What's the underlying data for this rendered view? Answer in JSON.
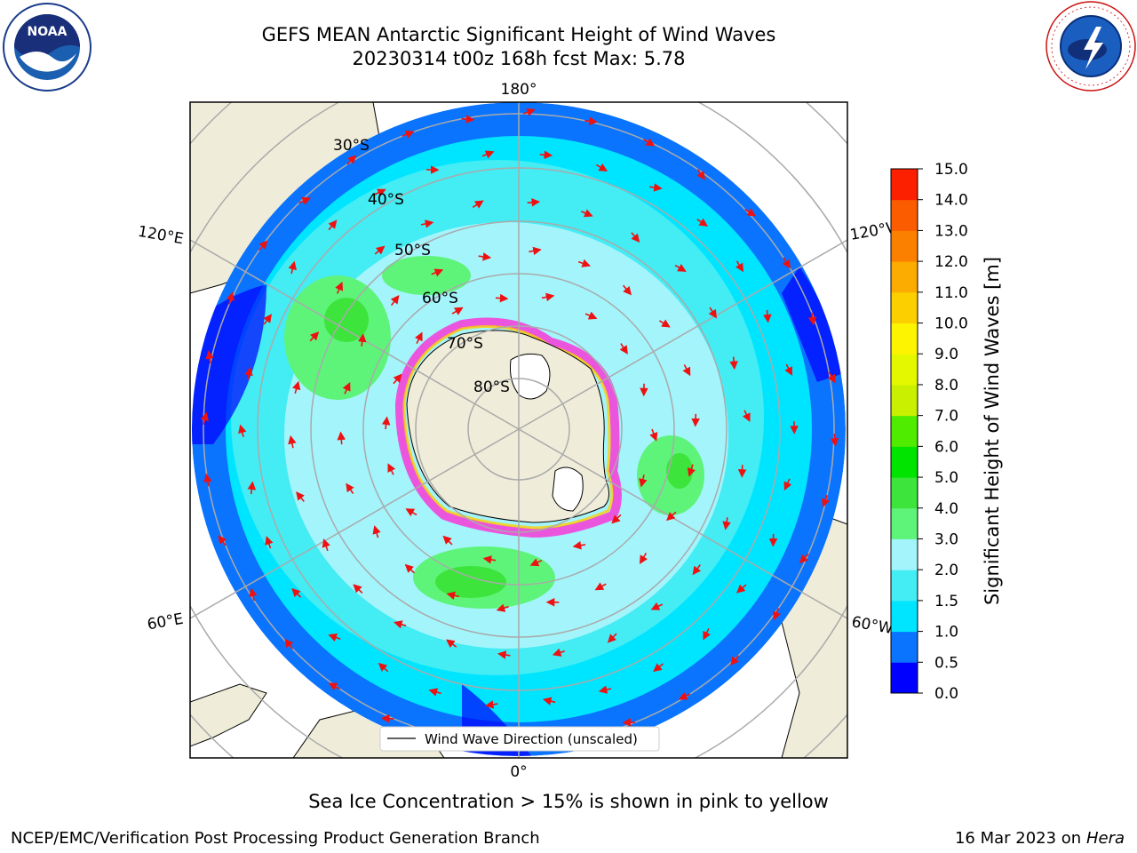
{
  "header": {
    "title_line1": "GEFS MEAN Antarctic Significant Height of Wind Waves",
    "title_line2": "20230314 t00z 168h fcst   Max: 5.78"
  },
  "logos": {
    "left": "NOAA",
    "right": "NATIONAL WEATHER SERVICE"
  },
  "map": {
    "projection": "south-polar-stereographic",
    "lon_labels": {
      "top": "180°",
      "bottom": "0°",
      "left_upper": "120°E",
      "left_lower": "60°E",
      "right_upper": "120°W",
      "right_lower": "60°W"
    },
    "lat_labels": [
      "30°S",
      "40°S",
      "50°S",
      "60°S",
      "70°S",
      "80°S"
    ],
    "legend_label": "Wind Wave Direction (unscaled)",
    "arrow_color": "#ee1111"
  },
  "colorbar": {
    "label": "Significant Height of Wind Waves [m]",
    "ticks": [
      "0.0",
      "0.5",
      "1.0",
      "1.5",
      "2.0",
      "3.0",
      "4.0",
      "5.0",
      "6.0",
      "7.0",
      "8.0",
      "9.0",
      "10.0",
      "11.0",
      "12.0",
      "13.0",
      "14.0",
      "15.0"
    ],
    "colors": [
      "#0000ff",
      "#0a74ff",
      "#00e5ff",
      "#44ecf4",
      "#a4f4fc",
      "#5ef47a",
      "#3ce43c",
      "#00e400",
      "#50ec00",
      "#c8f000",
      "#e4f800",
      "#fcf400",
      "#fcd000",
      "#fcac00",
      "#fc8000",
      "#fc5c00",
      "#fc2000"
    ]
  },
  "caption": "Sea Ice Concentration > 15% is shown in pink to yellow",
  "footer": {
    "left": "NCEP/EMC/Verification Post Processing Product Generation Branch",
    "right_date": "16 Mar 2023 on",
    "right_host": "Hera"
  }
}
